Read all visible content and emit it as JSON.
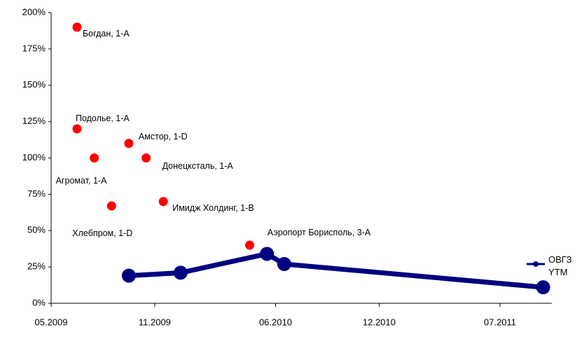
{
  "chart_data": {
    "type": "scatter",
    "xlim": [
      "2009-05",
      "2011-10"
    ],
    "xticks": [
      {
        "value": "2009-05",
        "label": "05.2009"
      },
      {
        "value": "2009-11",
        "label": "11.2009"
      },
      {
        "value": "2010-06",
        "label": "06.2010"
      },
      {
        "value": "2010-12",
        "label": "12.2010"
      },
      {
        "value": "2011-07",
        "label": "07.2011"
      }
    ],
    "ylim": [
      0,
      200
    ],
    "yticks": [
      {
        "value": 0,
        "label": "0%"
      },
      {
        "value": 25,
        "label": "25%"
      },
      {
        "value": 50,
        "label": "50%"
      },
      {
        "value": 75,
        "label": "75%"
      },
      {
        "value": 100,
        "label": "100%"
      },
      {
        "value": 125,
        "label": "125%"
      },
      {
        "value": 150,
        "label": "150%"
      },
      {
        "value": 175,
        "label": "175%"
      },
      {
        "value": 200,
        "label": "200%"
      }
    ],
    "legend": "right",
    "series": [
      {
        "type": "scatter",
        "color": "#ff0000",
        "x": [
          "2009-06",
          "2009-06",
          "2009-09",
          "2009-07",
          "2009-10",
          "2009-11",
          "2009-08",
          "2010-04"
        ],
        "values": [
          190,
          120,
          110,
          100,
          100,
          70,
          67,
          40
        ],
        "labels": [
          "Богдан, 1-А",
          "Подолье, 1-А",
          "Амстор, 1-D",
          "Агромат, 1-А",
          "Донецксталь, 1-А",
          "Имидж Холдинг, 1-В",
          "Хлебпром, 1-D",
          "Аэропорт Борисполь, 3-А"
        ]
      },
      {
        "type": "line",
        "name": "ОВГЗ YTM",
        "color": "#000080",
        "x": [
          "2009-09",
          "2009-12",
          "2010-05",
          "2010-06",
          "2011-09"
        ],
        "values": [
          19,
          21,
          34,
          27,
          11
        ]
      }
    ]
  }
}
